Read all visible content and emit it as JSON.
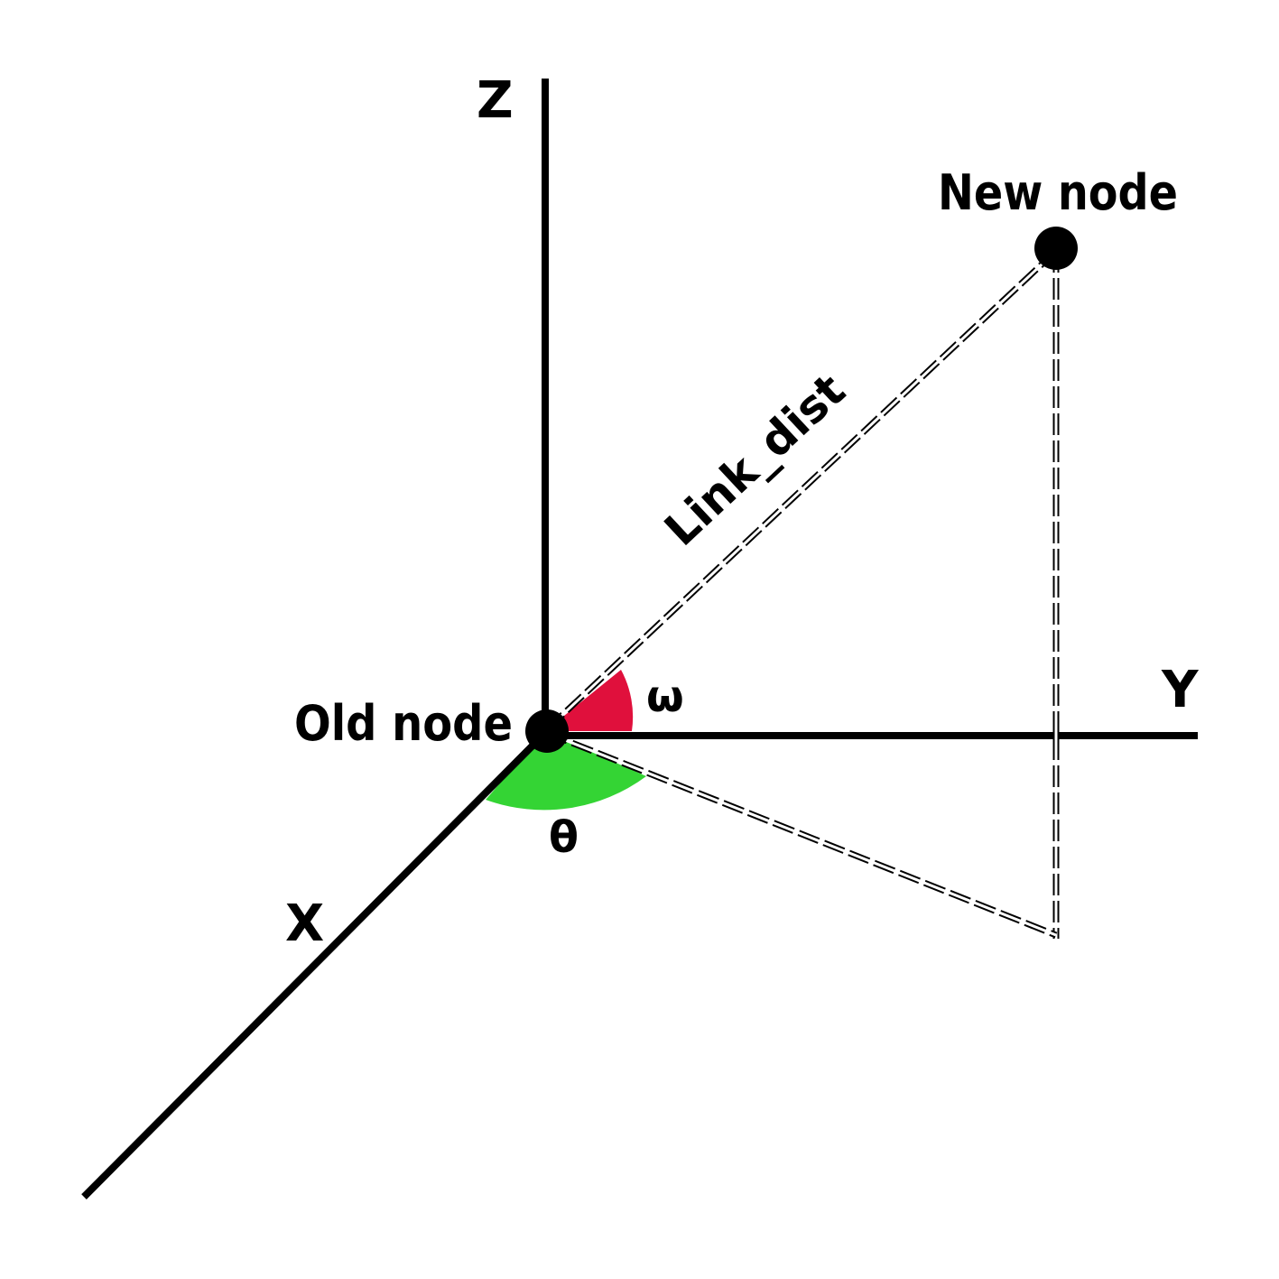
{
  "labels": {
    "z_axis": "Z",
    "y_axis": "Y",
    "x_axis": "X",
    "old_node": "Old node",
    "new_node": "New node",
    "link": "Link_dist",
    "omega": "ω",
    "theta": "θ"
  },
  "colors": {
    "omega_arc": "#e0103c",
    "theta_arc": "#34d434",
    "axes": "#000000",
    "nodes": "#000000"
  }
}
